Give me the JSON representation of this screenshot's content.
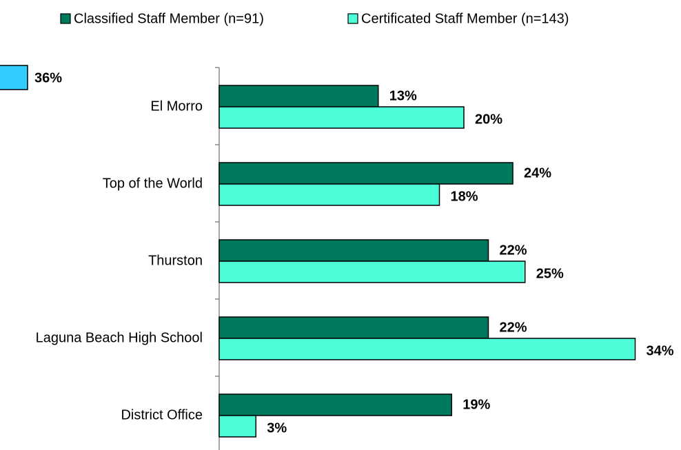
{
  "chart_data": {
    "type": "barh",
    "categories": [
      "El Morro",
      "Top of the World",
      "Thurston",
      "Laguna Beach High School",
      "District Office"
    ],
    "series": [
      {
        "name": "Classified Staff Member (n=91)",
        "color": "#007a5f",
        "values": [
          13,
          24,
          22,
          22,
          19
        ],
        "value_labels": [
          "13%",
          "24%",
          "22%",
          "22%",
          "19%"
        ]
      },
      {
        "name": "Certificated Staff Member (n=143)",
        "color": "#4dffd9",
        "values": [
          20,
          18,
          25,
          34,
          3
        ],
        "value_labels": [
          "20%",
          "18%",
          "25%",
          "34%",
          "3%"
        ]
      }
    ],
    "xlim": [
      0,
      36
    ],
    "annotations": [
      "36%"
    ]
  }
}
